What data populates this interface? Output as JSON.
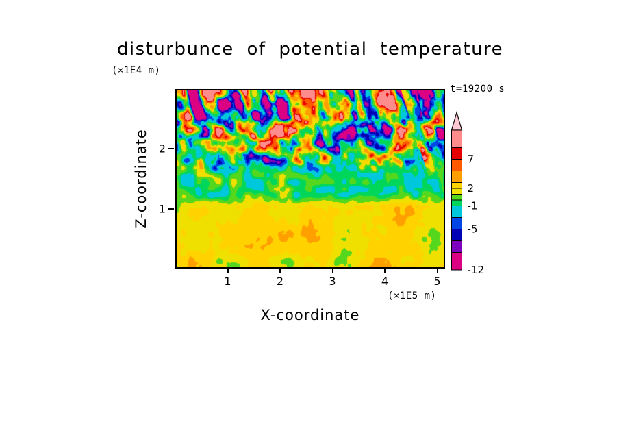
{
  "chart_data": {
    "type": "heatmap",
    "title": "disturbunce of potential temperature",
    "xlabel": "X-coordinate",
    "zlabel": "Z-coordinate",
    "x_units_label": "(×1E5 m)",
    "z_units_label": "(×1E4 m)",
    "annotation": "t=19200 s",
    "xlim": [
      0,
      5.15
    ],
    "zlim": [
      0,
      3.0
    ],
    "x_ticks": [
      1,
      2,
      3,
      4,
      5
    ],
    "z_ticks": [
      1,
      2
    ],
    "grid": false,
    "colorbar_position": "right",
    "colorbar": {
      "boundaries": [
        -12,
        -9,
        -7,
        -5,
        -3,
        -1,
        0,
        1,
        2,
        3,
        5,
        7,
        9,
        12
      ],
      "colors": [
        "#DC0082",
        "#7D00BE",
        "#0000B4",
        "#0046E6",
        "#00C8DC",
        "#00D75A",
        "#55D71E",
        "#F0E000",
        "#FFD200",
        "#FFA000",
        "#FF5A00",
        "#E60000",
        "#FF8C8C"
      ],
      "over_color": "#FFC8D2",
      "tick_labels": [
        {
          "value": 7,
          "label": "7"
        },
        {
          "value": 2,
          "label": "2"
        },
        {
          "value": -1,
          "label": "-1"
        },
        {
          "value": -5,
          "label": "-5"
        },
        {
          "value": -12,
          "label": "-12"
        }
      ]
    },
    "field_description": {
      "lower_layer": "z below ~1 (×1E4 m): smooth stratified band, values ~0.5 to 3 (yellow/golden with orange patches)",
      "middle_band": "z ~1 to 1.5: weak disturbances, values ~-2 to 1 (green background with cyan patches)",
      "upper_layer": "z above ~1.5: strong turbulent cells, values ~-12 to +9 (orange/red and blue/purple blobs on green background, intensity increasing toward top)"
    }
  }
}
